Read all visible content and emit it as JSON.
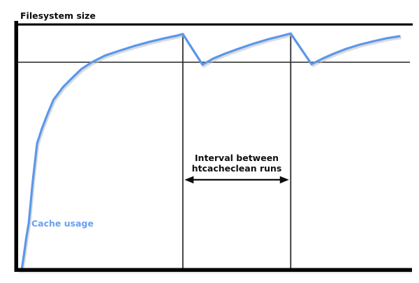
{
  "colors": {
    "background": "#ffffff",
    "axis": "#000000",
    "guide_line": "#2d2d2d",
    "curve": "#5b97ea",
    "curve_shadow": "#b9bdc3",
    "series_label_text": "#68a0f2",
    "annotation_text": "#0e0e0e"
  },
  "chart_data": {
    "type": "line",
    "title": "Filesystem size",
    "xlabel": "",
    "ylabel": "",
    "x_axis": {
      "ticks": [],
      "range_pct": [
        0,
        100
      ]
    },
    "y_axis": {
      "ticks": [],
      "range_pct": [
        0,
        100
      ],
      "top_reference_label": "Filesystem size"
    },
    "grid": false,
    "legend_position": "inline-bottom-left",
    "filesystem_size_level_pct": 100,
    "cache_limit_line_pct": 84,
    "run_lines_x_pct": [
      41.8,
      69.2
    ],
    "run_line_top_pct": 95.7,
    "series": [
      {
        "name": "Cache usage",
        "points_pct": [
          [
            0.9,
            -0.3
          ],
          [
            1.4,
            4.8
          ],
          [
            2.1,
            12.8
          ],
          [
            2.7,
            18.5
          ],
          [
            3.2,
            27.0
          ],
          [
            3.7,
            35.5
          ],
          [
            4.3,
            44.0
          ],
          [
            4.8,
            50.9
          ],
          [
            6.0,
            56.8
          ],
          [
            7.5,
            63.1
          ],
          [
            9.0,
            68.8
          ],
          [
            11.4,
            73.9
          ],
          [
            13.7,
            77.6
          ],
          [
            16.1,
            81.3
          ],
          [
            18.8,
            84.1
          ],
          [
            22.0,
            86.7
          ],
          [
            25.5,
            88.6
          ],
          [
            29.4,
            90.6
          ],
          [
            33.3,
            92.3
          ],
          [
            37.2,
            93.8
          ],
          [
            40.4,
            94.9
          ],
          [
            41.8,
            95.5
          ],
          [
            46.8,
            83.0
          ],
          [
            49.5,
            85.5
          ],
          [
            52.5,
            87.5
          ],
          [
            55.9,
            89.5
          ],
          [
            59.6,
            91.5
          ],
          [
            63.7,
            93.5
          ],
          [
            67.2,
            94.9
          ],
          [
            69.2,
            95.7
          ],
          [
            74.5,
            83.2
          ],
          [
            77.3,
            85.5
          ],
          [
            80.1,
            87.5
          ],
          [
            83.3,
            89.5
          ],
          [
            86.7,
            91.2
          ],
          [
            90.3,
            92.6
          ],
          [
            93.6,
            93.8
          ],
          [
            96.8,
            94.6
          ]
        ]
      }
    ],
    "annotations": [
      {
        "type": "double-arrow-with-label",
        "text_line1": "Interval between",
        "text_line2": "htcacheclean runs",
        "x_from_pct": 41.8,
        "x_to_pct": 69.2,
        "y_pct": 36.1
      }
    ]
  }
}
